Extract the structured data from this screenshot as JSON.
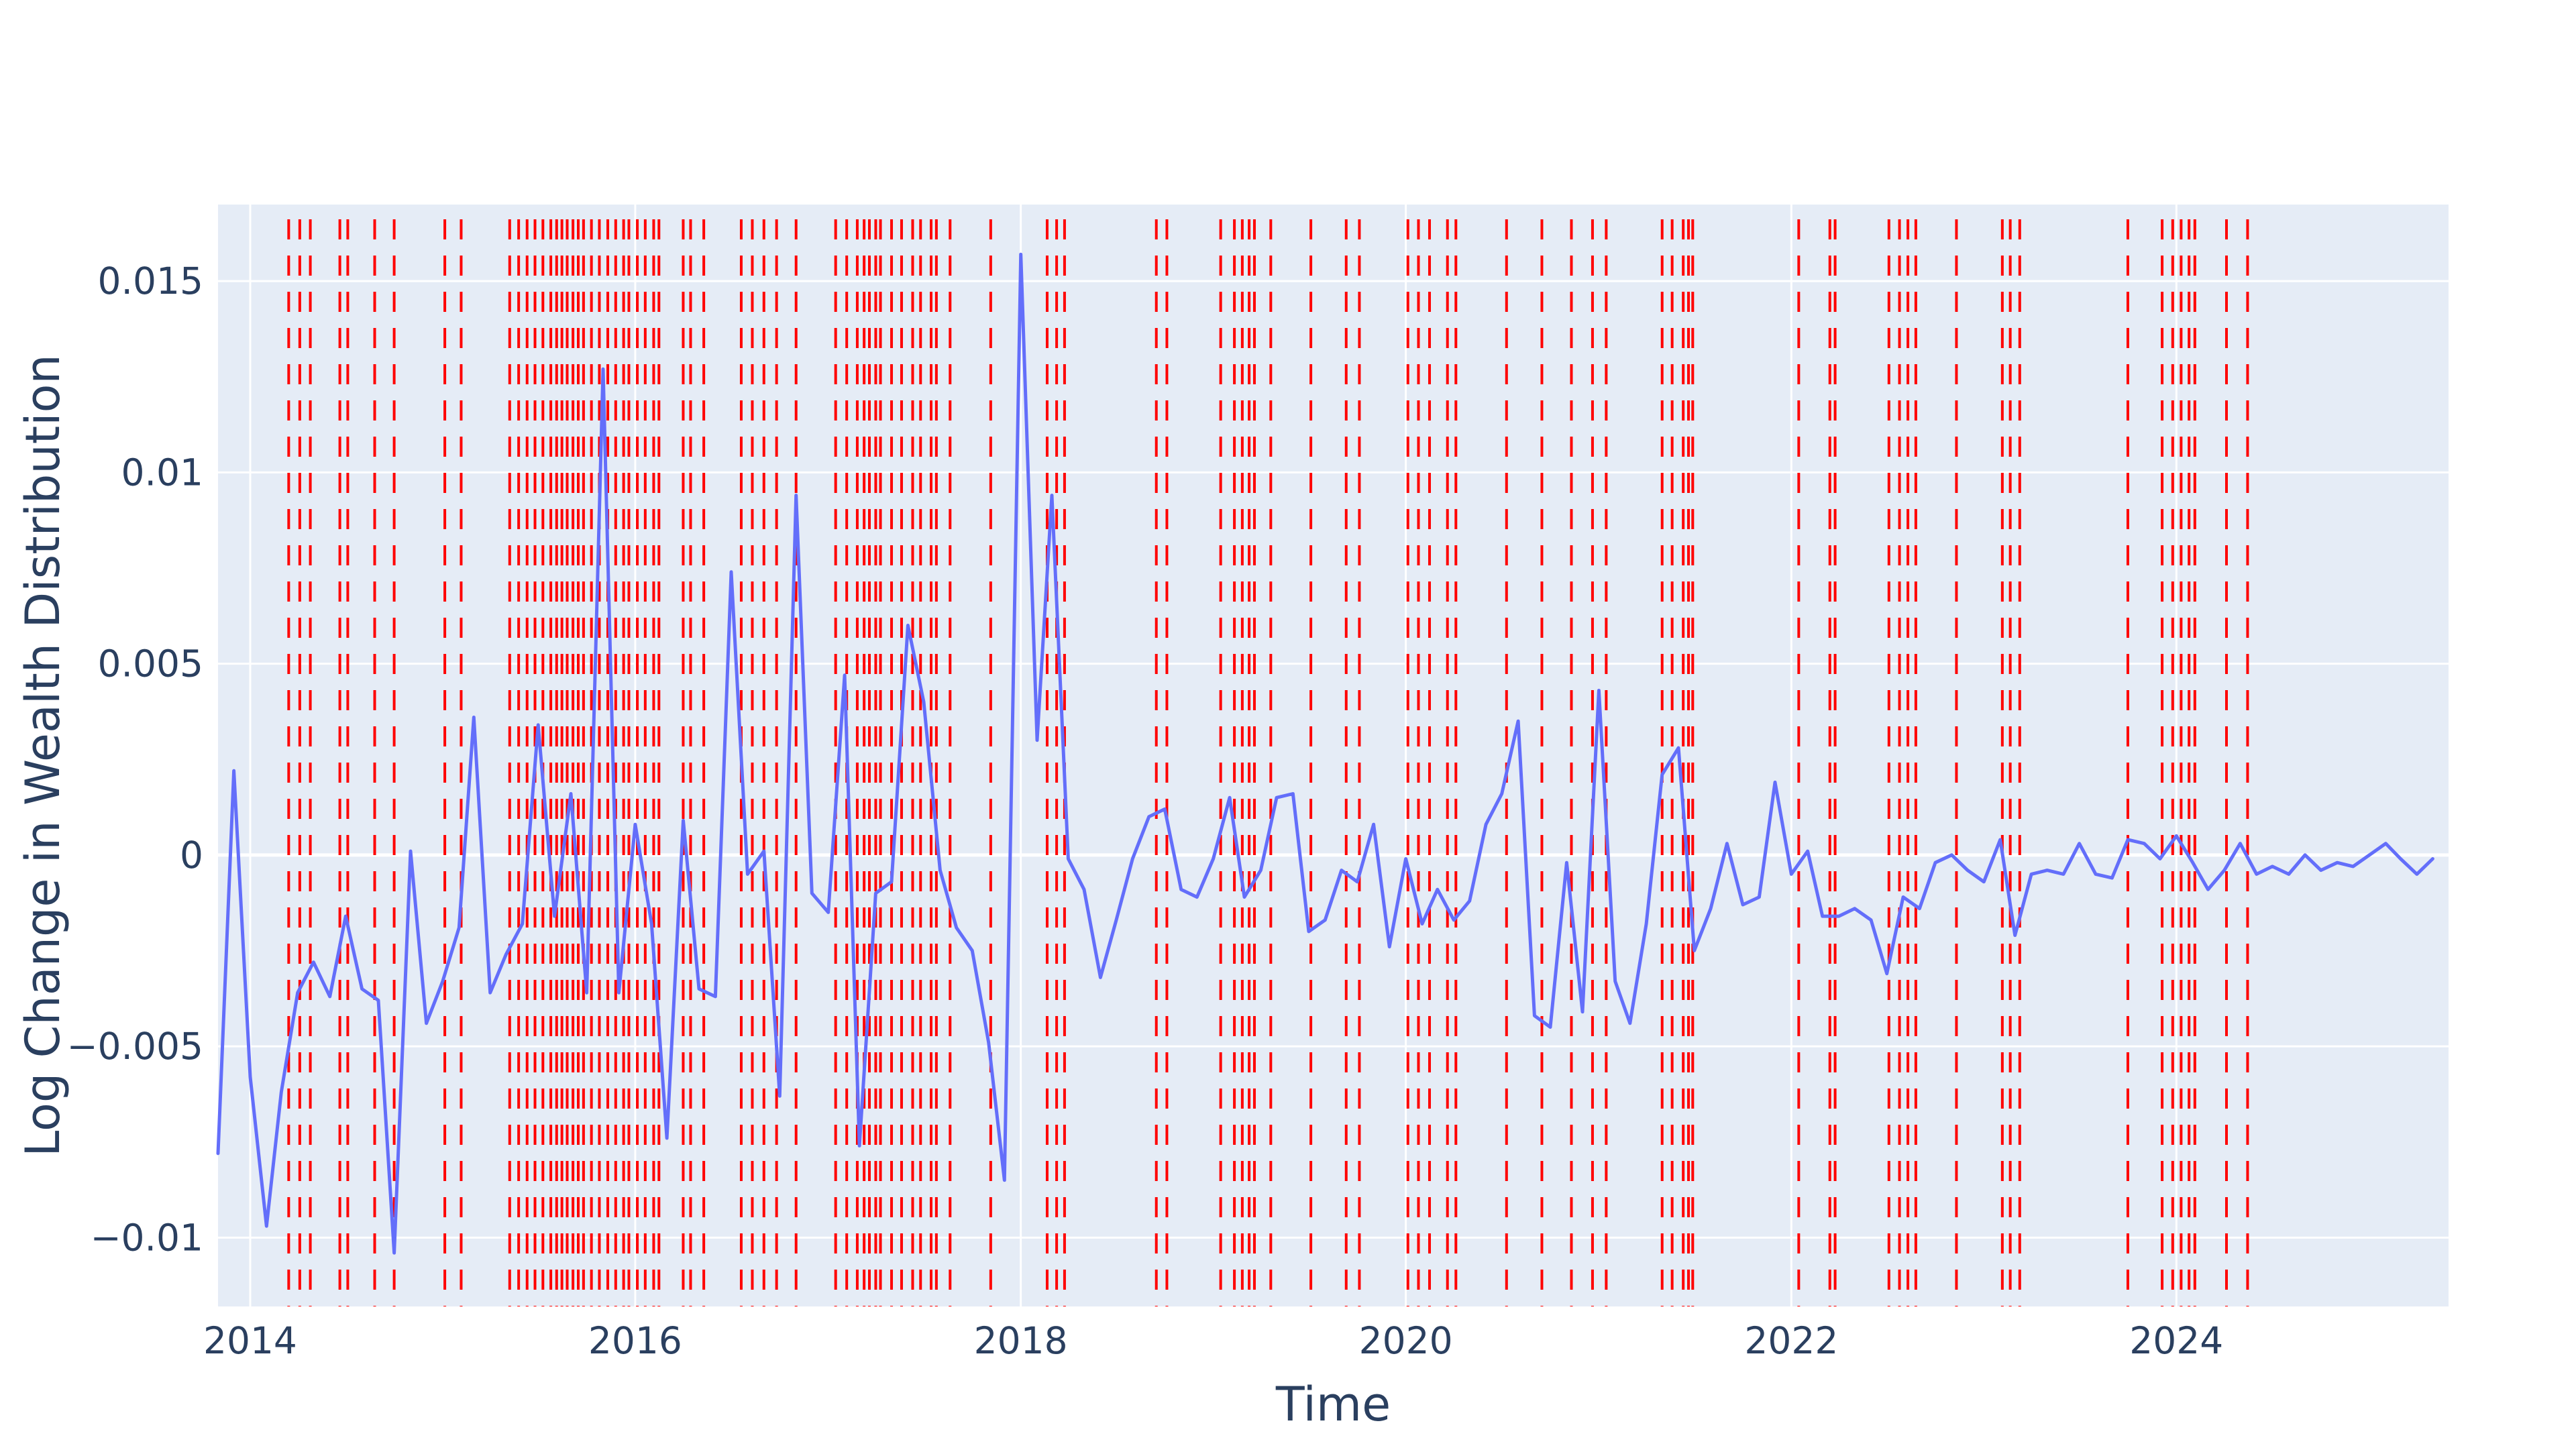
{
  "chart_data": {
    "type": "line",
    "title": "",
    "xlabel": "Time",
    "ylabel": "Log Change in Wealth Distribution",
    "x_range": [
      "2013-11-01",
      "2025-05-31"
    ],
    "ylim": [
      -0.0118,
      0.017
    ],
    "x_ticks": [
      {
        "label": "2014",
        "date": "2014-01-01"
      },
      {
        "label": "2016",
        "date": "2016-01-01"
      },
      {
        "label": "2018",
        "date": "2018-01-01"
      },
      {
        "label": "2020",
        "date": "2020-01-01"
      },
      {
        "label": "2022",
        "date": "2022-01-01"
      },
      {
        "label": "2024",
        "date": "2024-01-01"
      }
    ],
    "y_ticks": [
      {
        "label": "−0.01",
        "value": -0.01
      },
      {
        "label": "−0.005",
        "value": -0.005
      },
      {
        "label": "0",
        "value": 0
      },
      {
        "label": "0.005",
        "value": 0.005
      },
      {
        "label": "0.01",
        "value": 0.01
      },
      {
        "label": "0.015",
        "value": 0.015
      }
    ],
    "grid": true,
    "colors": {
      "plot_background": "#e5ecf6",
      "grid": "#ffffff",
      "series_line": "#636efa",
      "event_lines": "#ff0000",
      "text": "#2a3f5f"
    },
    "series": [
      {
        "x": [
          "2013-11-01",
          "2013-12-01",
          "2014-01-01",
          "2014-02-01",
          "2014-03-01",
          "2014-04-01",
          "2014-05-01",
          "2014-06-01",
          "2014-07-01",
          "2014-08-01",
          "2014-09-01",
          "2014-10-01",
          "2014-11-01",
          "2014-12-01",
          "2015-01-01",
          "2015-02-01",
          "2015-03-01",
          "2015-04-01",
          "2015-05-01",
          "2015-06-01",
          "2015-07-01",
          "2015-08-01",
          "2015-09-01",
          "2015-10-01",
          "2015-11-01",
          "2015-12-01",
          "2016-01-01",
          "2016-02-01",
          "2016-03-01",
          "2016-04-01",
          "2016-05-01",
          "2016-06-01",
          "2016-07-01",
          "2016-08-01",
          "2016-09-01",
          "2016-10-01",
          "2016-11-01",
          "2016-12-01",
          "2017-01-01",
          "2017-02-01",
          "2017-03-01",
          "2017-04-01",
          "2017-05-01",
          "2017-06-01",
          "2017-07-01",
          "2017-08-01",
          "2017-09-01",
          "2017-10-01",
          "2017-11-01",
          "2017-12-01",
          "2018-01-01",
          "2018-02-01",
          "2018-03-01",
          "2018-04-01",
          "2018-05-01",
          "2018-06-01",
          "2018-07-01",
          "2018-08-01",
          "2018-09-01",
          "2018-10-01",
          "2018-11-01",
          "2018-12-01",
          "2019-01-01",
          "2019-02-01",
          "2019-03-01",
          "2019-04-01",
          "2019-05-01",
          "2019-06-01",
          "2019-07-01",
          "2019-08-01",
          "2019-09-01",
          "2019-10-01",
          "2019-11-01",
          "2019-12-01",
          "2020-01-01",
          "2020-02-01",
          "2020-03-01",
          "2020-04-01",
          "2020-05-01",
          "2020-06-01",
          "2020-07-01",
          "2020-08-01",
          "2020-09-01",
          "2020-10-01",
          "2020-11-01",
          "2020-12-01",
          "2021-01-01",
          "2021-02-01",
          "2021-03-01",
          "2021-04-01",
          "2021-05-01",
          "2021-06-01",
          "2021-07-01",
          "2021-08-01",
          "2021-09-01",
          "2021-10-01",
          "2021-11-01",
          "2021-12-01",
          "2022-01-01",
          "2022-02-01",
          "2022-03-01",
          "2022-04-01",
          "2022-05-01",
          "2022-06-01",
          "2022-07-01",
          "2022-08-01",
          "2022-09-01",
          "2022-10-01",
          "2022-11-01",
          "2022-12-01",
          "2023-01-01",
          "2023-02-01",
          "2023-03-01",
          "2023-04-01",
          "2023-05-01",
          "2023-06-01",
          "2023-07-01",
          "2023-08-01",
          "2023-09-01",
          "2023-10-01",
          "2023-11-01",
          "2023-12-01",
          "2024-01-01",
          "2024-02-01",
          "2024-03-01",
          "2024-04-01",
          "2024-05-01",
          "2024-06-01",
          "2024-07-01",
          "2024-08-01",
          "2024-09-01",
          "2024-10-01",
          "2024-11-01",
          "2024-12-01",
          "2025-01-01",
          "2025-02-01",
          "2025-03-01",
          "2025-04-01",
          "2025-05-01"
        ],
        "y": [
          -0.0078,
          0.0022,
          -0.0058,
          -0.0097,
          -0.0062,
          -0.0036,
          -0.0028,
          -0.0037,
          -0.0016,
          -0.0035,
          -0.0038,
          -0.0104,
          0.0001,
          -0.0044,
          -0.0033,
          -0.0019,
          0.0036,
          -0.0036,
          -0.0026,
          -0.0018,
          0.0034,
          -0.0016,
          0.0016,
          -0.0036,
          0.0127,
          -0.0036,
          0.0008,
          -0.0018,
          -0.0074,
          0.0009,
          -0.0035,
          -0.0037,
          0.0074,
          -0.0005,
          0.0001,
          -0.0063,
          0.0094,
          -0.001,
          -0.0015,
          0.0047,
          -0.0076,
          -0.001,
          -0.0007,
          0.006,
          0.004,
          -0.0004,
          -0.0019,
          -0.0025,
          -0.0049,
          -0.0085,
          0.0157,
          0.003,
          0.0094,
          -0.0001,
          -0.0009,
          -0.0032,
          -0.0017,
          -0.0001,
          0.001,
          0.0012,
          -0.0009,
          -0.0011,
          -0.0001,
          0.0015,
          -0.0011,
          -0.0004,
          0.0015,
          0.0016,
          -0.002,
          -0.0017,
          -0.0004,
          -0.0007,
          0.0008,
          -0.0024,
          -0.0001,
          -0.0018,
          -0.0009,
          -0.0017,
          -0.0012,
          0.0008,
          0.0016,
          0.0035,
          -0.0042,
          -0.0045,
          -0.0002,
          -0.0041,
          0.0043,
          -0.0033,
          -0.0044,
          -0.0018,
          0.0021,
          0.0028,
          -0.0025,
          -0.0014,
          0.0003,
          -0.0013,
          -0.0011,
          0.0019,
          -0.0005,
          0.0001,
          -0.0016,
          -0.0016,
          -0.0014,
          -0.0017,
          -0.0031,
          -0.0011,
          -0.0014,
          -0.0002,
          0.0,
          -0.0004,
          -0.0007,
          0.0004,
          -0.0021,
          -0.0005,
          -0.0004,
          -0.0005,
          0.0003,
          -0.0005,
          -0.0006,
          0.0004,
          0.0003,
          -0.0001,
          0.0005,
          -0.0002,
          -0.0009,
          -0.0004,
          0.0003,
          -0.0005,
          -0.0003,
          -0.0005,
          0.0,
          -0.0004,
          -0.0002,
          -0.0003,
          0.0,
          0.0003,
          -0.0001,
          -0.0005,
          -0.0001
        ]
      }
    ],
    "event_dates": [
      "2014-03-15",
      "2014-04-05",
      "2014-04-25",
      "2014-06-20",
      "2014-07-05",
      "2014-08-25",
      "2014-10-01",
      "2015-01-05",
      "2015-02-05",
      "2015-05-08",
      "2015-05-25",
      "2015-06-10",
      "2015-06-25",
      "2015-07-10",
      "2015-07-25",
      "2015-08-05",
      "2015-08-15",
      "2015-08-25",
      "2015-09-05",
      "2015-09-15",
      "2015-09-25",
      "2015-10-10",
      "2015-10-25",
      "2015-11-10",
      "2015-11-25",
      "2015-12-10",
      "2015-12-20",
      "2016-01-05",
      "2016-01-20",
      "2016-02-05",
      "2016-02-15",
      "2016-04-01",
      "2016-04-15",
      "2016-05-10",
      "2016-07-20",
      "2016-08-10",
      "2016-09-01",
      "2016-09-25",
      "2016-11-01",
      "2017-01-15",
      "2017-02-05",
      "2017-02-25",
      "2017-03-10",
      "2017-03-20",
      "2017-04-01",
      "2017-04-10",
      "2017-05-01",
      "2017-05-20",
      "2017-06-10",
      "2017-06-25",
      "2017-07-15",
      "2017-07-25",
      "2017-08-20",
      "2017-11-05",
      "2018-02-20",
      "2018-03-10",
      "2018-03-25",
      "2018-09-15",
      "2018-10-05",
      "2019-01-15",
      "2019-02-10",
      "2019-02-25",
      "2019-03-10",
      "2019-03-20",
      "2019-04-20",
      "2019-07-05",
      "2019-09-10",
      "2019-10-05",
      "2020-01-05",
      "2020-01-25",
      "2020-02-15",
      "2020-03-20",
      "2020-04-05",
      "2020-07-10",
      "2020-09-15",
      "2020-11-10",
      "2020-12-20",
      "2021-01-15",
      "2021-05-01",
      "2021-05-20",
      "2021-06-10",
      "2021-06-20",
      "2021-06-28",
      "2022-01-15",
      "2022-03-15",
      "2022-03-25",
      "2022-07-05",
      "2022-07-25",
      "2022-08-10",
      "2022-08-25",
      "2022-11-10",
      "2023-02-05",
      "2023-02-20",
      "2023-03-10",
      "2023-10-01",
      "2023-12-05",
      "2023-12-25",
      "2024-01-10",
      "2024-01-25",
      "2024-02-05",
      "2024-04-05",
      "2024-05-15"
    ]
  }
}
